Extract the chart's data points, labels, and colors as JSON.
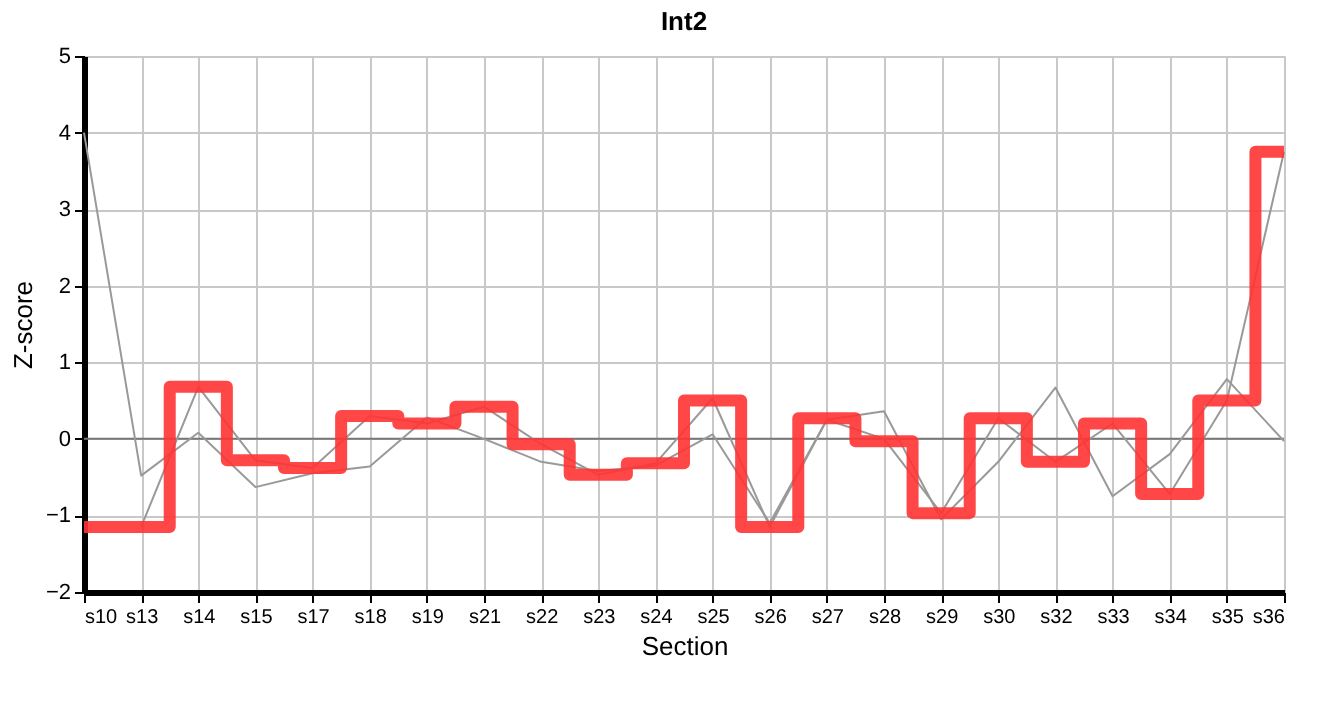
{
  "chart_data": {
    "type": "line",
    "title": "Int2",
    "xlabel": "Section",
    "ylabel": "Z-score",
    "categories": [
      "s10",
      "s13",
      "s14",
      "s15",
      "s17",
      "s18",
      "s19",
      "s21",
      "s22",
      "s23",
      "s24",
      "s25",
      "s26",
      "s27",
      "s28",
      "s29",
      "s30",
      "s32",
      "s33",
      "s34",
      "s35",
      "s36"
    ],
    "series": [
      {
        "color": "#999999",
        "values": [
          4.0,
          -0.48,
          0.08,
          -0.63,
          -0.45,
          -0.36,
          0.28,
          0.0,
          -0.3,
          -0.42,
          -0.35,
          0.06,
          -1.1,
          0.25,
          0.36,
          -1.05,
          -0.3,
          0.67,
          -0.75,
          -0.2,
          0.78,
          -0.03
        ]
      },
      {
        "color": "#999999",
        "values": [
          null,
          -1.15,
          0.68,
          -0.28,
          -0.38,
          0.3,
          0.2,
          0.42,
          -0.07,
          -0.47,
          -0.32,
          0.53,
          -1.15,
          0.25,
          0.0,
          -0.97,
          0.27,
          -0.3,
          0.2,
          -0.72,
          0.5,
          3.75
        ]
      },
      {
        "type": "step",
        "color": "#ff3333",
        "values": [
          -1.15,
          -1.15,
          0.68,
          -0.28,
          -0.38,
          0.3,
          0.2,
          0.42,
          -0.07,
          -0.47,
          -0.32,
          0.5,
          -1.15,
          0.27,
          -0.03,
          -0.97,
          0.27,
          -0.3,
          0.2,
          -0.72,
          0.5,
          3.75
        ]
      }
    ],
    "ylim": [
      -2,
      5
    ],
    "yticks": [
      -2,
      -1,
      0,
      1,
      2,
      3,
      4,
      5
    ],
    "grid": true,
    "ref_lines": [
      {
        "axis": "y",
        "value": 0,
        "color": "#777777"
      }
    ]
  }
}
